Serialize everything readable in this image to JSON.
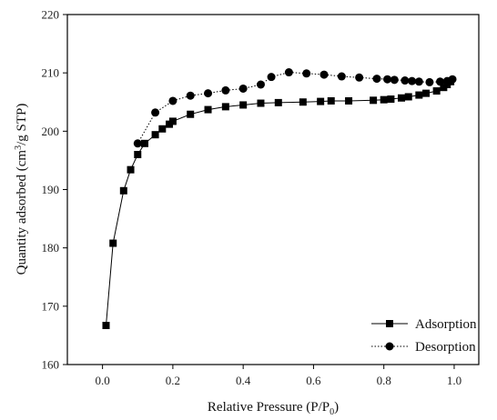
{
  "chart_data": {
    "type": "scatter",
    "title": "",
    "xlabel": "Relative Pressure (P/P",
    "xlabel_sub": "0",
    "xlabel_close": ")",
    "ylabel": "Quantity adsorbed (cm",
    "ylabel_sup": "3",
    "ylabel_tail": "/g STP)",
    "xlim": [
      -0.1,
      1.07
    ],
    "ylim": [
      160,
      220
    ],
    "xticks": [
      0.0,
      0.2,
      0.4,
      0.6,
      0.8,
      1.0
    ],
    "xtick_labels": [
      "0.0",
      "0.2",
      "0.4",
      "0.6",
      "0.8",
      "1.0"
    ],
    "yticks": [
      160,
      170,
      180,
      190,
      200,
      210,
      220
    ],
    "ytick_labels": [
      "160",
      "170",
      "180",
      "190",
      "200",
      "210",
      "220"
    ],
    "grid": false,
    "legend_position": "bottom-right",
    "series": [
      {
        "name": "Adsorption",
        "marker": "square",
        "line": "solid",
        "color": "#000000",
        "x": [
          0.01,
          0.03,
          0.06,
          0.08,
          0.1,
          0.12,
          0.15,
          0.17,
          0.19,
          0.2,
          0.25,
          0.3,
          0.35,
          0.4,
          0.45,
          0.5,
          0.57,
          0.62,
          0.65,
          0.7,
          0.77,
          0.8,
          0.82,
          0.85,
          0.87,
          0.9,
          0.92,
          0.95,
          0.97,
          0.98,
          0.99
        ],
        "y": [
          166.7,
          180.8,
          189.8,
          193.4,
          196.0,
          197.9,
          199.4,
          200.4,
          201.2,
          201.7,
          202.9,
          203.7,
          204.2,
          204.5,
          204.8,
          204.9,
          205.0,
          205.1,
          205.2,
          205.2,
          205.3,
          205.4,
          205.5,
          205.7,
          205.9,
          206.2,
          206.5,
          206.9,
          207.5,
          208.0,
          208.5
        ]
      },
      {
        "name": "Desorption",
        "marker": "circle",
        "line": "dotted",
        "color": "#000000",
        "x": [
          0.995,
          0.98,
          0.96,
          0.93,
          0.9,
          0.88,
          0.86,
          0.83,
          0.81,
          0.78,
          0.73,
          0.68,
          0.63,
          0.58,
          0.53,
          0.48,
          0.45,
          0.4,
          0.35,
          0.3,
          0.25,
          0.2,
          0.15,
          0.1
        ],
        "y": [
          208.9,
          208.6,
          208.5,
          208.4,
          208.5,
          208.6,
          208.7,
          208.8,
          208.9,
          209.0,
          209.2,
          209.4,
          209.7,
          209.9,
          210.1,
          209.3,
          208.0,
          207.3,
          207.0,
          206.5,
          206.1,
          205.2,
          203.2,
          197.9
        ]
      }
    ]
  }
}
